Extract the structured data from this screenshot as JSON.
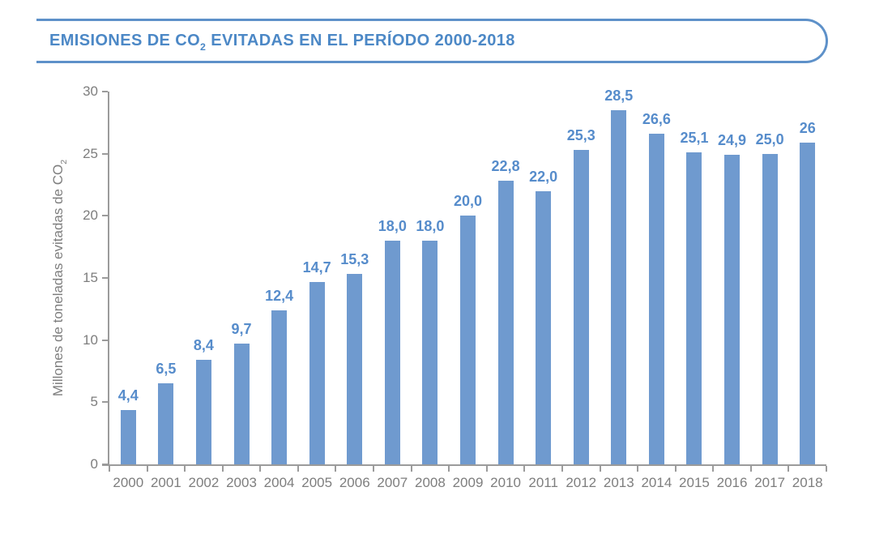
{
  "header": {
    "title_prefix": "EMISIONES DE CO",
    "title_sub": "2",
    "title_suffix": " EVITADAS EN EL PERÍODO 2000-2018",
    "title_color": "#4C88C6",
    "border_color": "#5E91C9"
  },
  "chart_data": {
    "type": "bar",
    "title": "EMISIONES DE CO2 EVITADAS EN EL PERÍODO 2000-2018",
    "categories": [
      "2000",
      "2001",
      "2002",
      "2003",
      "2004",
      "2005",
      "2006",
      "2007",
      "2008",
      "2009",
      "2010",
      "2011",
      "2012",
      "2013",
      "2014",
      "2015",
      "2016",
      "2017",
      "2018"
    ],
    "values": [
      4.4,
      6.5,
      8.4,
      9.7,
      12.4,
      14.7,
      15.3,
      18.0,
      18.0,
      20.0,
      22.8,
      22.0,
      25.3,
      28.5,
      26.6,
      25.1,
      24.9,
      25.0,
      25.9
    ],
    "value_labels": [
      "4,4",
      "6,5",
      "8,4",
      "9,7",
      "12,4",
      "14,7",
      "15,3",
      "18,0",
      "18,0",
      "20,0",
      "22,8",
      "22,0",
      "25,3",
      "28,5",
      "26,6",
      "25,1",
      "24,9",
      "25,0",
      "26"
    ],
    "xlabel": "",
    "ylabel_prefix": "Millones de toneladas evitadas de CO",
    "ylabel_sub": "2",
    "ylim": [
      0,
      30
    ],
    "y_ticks": [
      "0",
      "5",
      "10",
      "15",
      "20",
      "25",
      "30"
    ],
    "grid": false,
    "legend": false,
    "bar_color": "#6F9ACF",
    "value_label_color": "#568CCB",
    "axis_text_color": "#7E7E7E",
    "axis_line_color": "#9B9B9B"
  }
}
